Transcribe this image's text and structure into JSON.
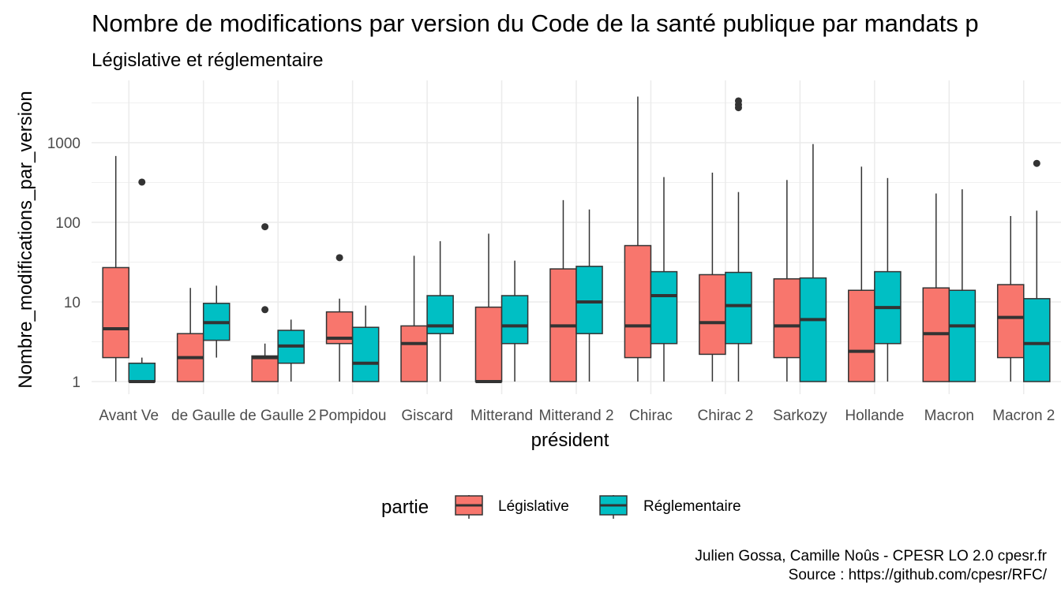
{
  "chart_data": {
    "type": "box",
    "title": "Nombre de modifications par version du Code de la santé publique par mandats p",
    "subtitle": "Législative et réglementaire",
    "xlabel": "président",
    "ylabel": "Nombre_modifications_par_version",
    "y_scale": "log10",
    "ylim": [
      0.85,
      5500
    ],
    "y_ticks": [
      1,
      10,
      100,
      1000
    ],
    "y_tick_labels": [
      "1",
      "10",
      "100",
      "1000"
    ],
    "grid": true,
    "legend": {
      "title": "partie",
      "position": "bottom"
    },
    "categories": [
      "Avant Ve",
      "de Gaulle",
      "de Gaulle 2",
      "Pompidou",
      "Giscard",
      "Mitterand",
      "Mitterand 2",
      "Chirac",
      "Chirac 2",
      "Sarkozy",
      "Hollande",
      "Macron",
      "Macron 2"
    ],
    "series": [
      {
        "name": "Législative",
        "color": "#F8766D",
        "boxes": [
          {
            "category": "Avant Ve",
            "min": 1,
            "q1": 2,
            "median": 4.6,
            "q3": 27,
            "max": 680,
            "outliers": []
          },
          {
            "category": "de Gaulle",
            "min": 1,
            "q1": 1,
            "median": 2,
            "q3": 4,
            "max": 15,
            "outliers": []
          },
          {
            "category": "de Gaulle 2",
            "min": 1,
            "q1": 1,
            "median": 2,
            "q3": 2.1,
            "max": 3,
            "outliers": [
              8,
              88
            ]
          },
          {
            "category": "Pompidou",
            "min": 1,
            "q1": 3,
            "median": 3.5,
            "q3": 7.5,
            "max": 11,
            "outliers": [
              36
            ]
          },
          {
            "category": "Giscard",
            "min": 1,
            "q1": 1,
            "median": 3,
            "q3": 5,
            "max": 38,
            "outliers": []
          },
          {
            "category": "Mitterand",
            "min": 1,
            "q1": 1,
            "median": 1,
            "q3": 8.6,
            "max": 72,
            "outliers": []
          },
          {
            "category": "Mitterand 2",
            "min": 1,
            "q1": 1,
            "median": 5,
            "q3": 26,
            "max": 190,
            "outliers": []
          },
          {
            "category": "Chirac",
            "min": 1,
            "q1": 2,
            "median": 5,
            "q3": 51,
            "max": 3800,
            "outliers": []
          },
          {
            "category": "Chirac 2",
            "min": 1,
            "q1": 2.2,
            "median": 5.5,
            "q3": 22,
            "max": 420,
            "outliers": []
          },
          {
            "category": "Sarkozy",
            "min": 1,
            "q1": 2,
            "median": 5,
            "q3": 19.5,
            "max": 340,
            "outliers": []
          },
          {
            "category": "Hollande",
            "min": 1,
            "q1": 1,
            "median": 2.4,
            "q3": 14,
            "max": 500,
            "outliers": []
          },
          {
            "category": "Macron",
            "min": 1,
            "q1": 1,
            "median": 4,
            "q3": 15,
            "max": 230,
            "outliers": []
          },
          {
            "category": "Macron 2",
            "min": 1,
            "q1": 2,
            "median": 6.4,
            "q3": 16.5,
            "max": 120,
            "outliers": []
          }
        ]
      },
      {
        "name": "Réglementaire",
        "color": "#00BFC4",
        "boxes": [
          {
            "category": "Avant Ve",
            "min": 1,
            "q1": 1,
            "median": 1,
            "q3": 1.7,
            "max": 2,
            "outliers": [
              320
            ]
          },
          {
            "category": "de Gaulle",
            "min": 2,
            "q1": 3.3,
            "median": 5.5,
            "q3": 9.6,
            "max": 16,
            "outliers": []
          },
          {
            "category": "de Gaulle 2",
            "min": 1,
            "q1": 1.7,
            "median": 2.8,
            "q3": 4.4,
            "max": 6,
            "outliers": []
          },
          {
            "category": "Pompidou",
            "min": 1,
            "q1": 1,
            "median": 1.7,
            "q3": 4.8,
            "max": 9,
            "outliers": []
          },
          {
            "category": "Giscard",
            "min": 1,
            "q1": 4,
            "median": 5,
            "q3": 12,
            "max": 58,
            "outliers": []
          },
          {
            "category": "Mitterand",
            "min": 1,
            "q1": 3,
            "median": 5,
            "q3": 12,
            "max": 33,
            "outliers": []
          },
          {
            "category": "Mitterand 2",
            "min": 1,
            "q1": 4,
            "median": 10,
            "q3": 28,
            "max": 145,
            "outliers": []
          },
          {
            "category": "Chirac",
            "min": 1,
            "q1": 3,
            "median": 12,
            "q3": 24,
            "max": 370,
            "outliers": []
          },
          {
            "category": "Chirac 2",
            "min": 1,
            "q1": 3,
            "median": 9,
            "q3": 23.5,
            "max": 240,
            "outliers": [
              2750,
              3000,
              3350
            ]
          },
          {
            "category": "Sarkozy",
            "min": 1,
            "q1": 1,
            "median": 6,
            "q3": 20,
            "max": 960,
            "outliers": []
          },
          {
            "category": "Hollande",
            "min": 1,
            "q1": 3,
            "median": 8.5,
            "q3": 24,
            "max": 360,
            "outliers": []
          },
          {
            "category": "Macron",
            "min": 1,
            "q1": 1,
            "median": 5,
            "q3": 14,
            "max": 260,
            "outliers": []
          },
          {
            "category": "Macron 2",
            "min": 1,
            "q1": 1,
            "median": 3,
            "q3": 11,
            "max": 140,
            "outliers": [
              550
            ]
          }
        ]
      }
    ],
    "caption_lines": [
      "Julien Gossa, Camille Noûs - CPESR LO 2.0 cpesr.fr",
      "Source : https://github.com/cpesr/RFC/"
    ]
  }
}
